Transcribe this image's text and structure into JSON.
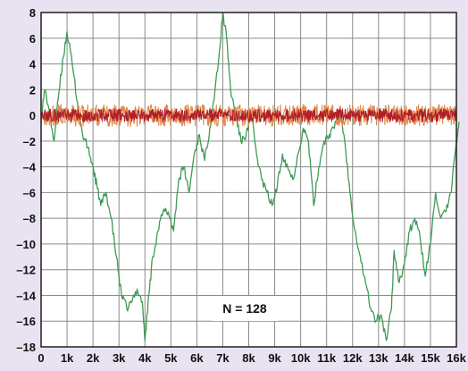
{
  "chart_data": {
    "type": "line",
    "title": "",
    "xlabel": "",
    "ylabel": "",
    "xlim": [
      0,
      16
    ],
    "ylim": [
      -18,
      8
    ],
    "grid": true,
    "x_ticks": [
      {
        "value": 0,
        "label": "0"
      },
      {
        "value": 1,
        "label": "1k"
      },
      {
        "value": 2,
        "label": "2k"
      },
      {
        "value": 3,
        "label": "3k"
      },
      {
        "value": 4,
        "label": "4k"
      },
      {
        "value": 5,
        "label": "5k"
      },
      {
        "value": 6,
        "label": "6k"
      },
      {
        "value": 7,
        "label": "7k"
      },
      {
        "value": 8,
        "label": "8k"
      },
      {
        "value": 9,
        "label": "9k"
      },
      {
        "value": 10,
        "label": "10k"
      },
      {
        "value": 11,
        "label": "11k"
      },
      {
        "value": 12,
        "label": "12k"
      },
      {
        "value": 13,
        "label": "13k"
      },
      {
        "value": 14,
        "label": "14k"
      },
      {
        "value": 15,
        "label": "15k"
      },
      {
        "value": 16,
        "label": "16k"
      }
    ],
    "y_ticks": [
      {
        "value": 8,
        "label": "8"
      },
      {
        "value": 6,
        "label": "6"
      },
      {
        "value": 4,
        "label": "4"
      },
      {
        "value": 2,
        "label": "2"
      },
      {
        "value": 0,
        "label": "0"
      },
      {
        "value": -2,
        "label": "–2"
      },
      {
        "value": -4,
        "label": "–4"
      },
      {
        "value": -6,
        "label": "–6"
      },
      {
        "value": -8,
        "label": "–8"
      },
      {
        "value": -10,
        "label": "–10"
      },
      {
        "value": -12,
        "label": "–12"
      },
      {
        "value": -14,
        "label": "–14"
      },
      {
        "value": -16,
        "label": "–16"
      },
      {
        "value": -18,
        "label": "–18"
      }
    ],
    "annotation": "N = 128",
    "series": [
      {
        "color": "#3e9a55",
        "x": [
          0,
          0.15,
          0.3,
          0.5,
          0.7,
          0.85,
          1.0,
          1.2,
          1.4,
          1.6,
          1.8,
          2.0,
          2.15,
          2.3,
          2.5,
          2.7,
          2.9,
          3.1,
          3.3,
          3.5,
          3.7,
          3.9,
          4.0,
          4.15,
          4.3,
          4.5,
          4.7,
          4.9,
          5.1,
          5.3,
          5.5,
          5.7,
          5.9,
          6.1,
          6.3,
          6.5,
          6.7,
          6.9,
          7.0,
          7.15,
          7.3,
          7.5,
          7.7,
          7.9,
          8.1,
          8.3,
          8.5,
          8.7,
          8.9,
          9.1,
          9.3,
          9.5,
          9.7,
          9.9,
          10.1,
          10.3,
          10.5,
          10.7,
          10.9,
          11.1,
          11.3,
          11.5,
          11.7,
          11.9,
          12.1,
          12.3,
          12.5,
          12.7,
          12.9,
          13.1,
          13.3,
          13.5,
          13.6,
          13.8,
          14.0,
          14.2,
          14.4,
          14.6,
          14.8,
          15.0,
          15.2,
          15.4,
          15.6,
          15.8,
          16.0,
          16.1
        ],
        "y": [
          0,
          2,
          0.5,
          -2,
          2,
          4.5,
          6.5,
          4,
          1,
          -1.5,
          -2.5,
          -4,
          -5.5,
          -7,
          -6,
          -8,
          -11,
          -14,
          -15,
          -14.5,
          -13.5,
          -14.5,
          -17.5,
          -14,
          -11,
          -9,
          -7.5,
          -7.5,
          -9,
          -5,
          -4,
          -6,
          -3,
          -1.5,
          -3.5,
          -1,
          2,
          5.5,
          8,
          6,
          2,
          0,
          -2,
          -1.5,
          0,
          -3,
          -5,
          -6,
          -7,
          -5.5,
          -3,
          -4,
          -5,
          -3,
          -1,
          -2,
          -7,
          -4,
          -2,
          -1.5,
          -1,
          0.5,
          -2,
          -6,
          -9,
          -11,
          -13,
          -15,
          -16,
          -15.5,
          -17.5,
          -15,
          -10.5,
          -13,
          -11.5,
          -9,
          -8,
          -9.5,
          -12.5,
          -10,
          -6,
          -8,
          -7.5,
          -6,
          -2,
          -0.5
        ]
      },
      {
        "color": "#e08a4e",
        "x": [
          0,
          16
        ],
        "y": [
          0,
          0
        ],
        "noise": 0.85
      },
      {
        "color": "#b01e28",
        "x": [
          0,
          16
        ],
        "y": [
          0,
          0
        ],
        "noise": 0.5
      }
    ]
  }
}
